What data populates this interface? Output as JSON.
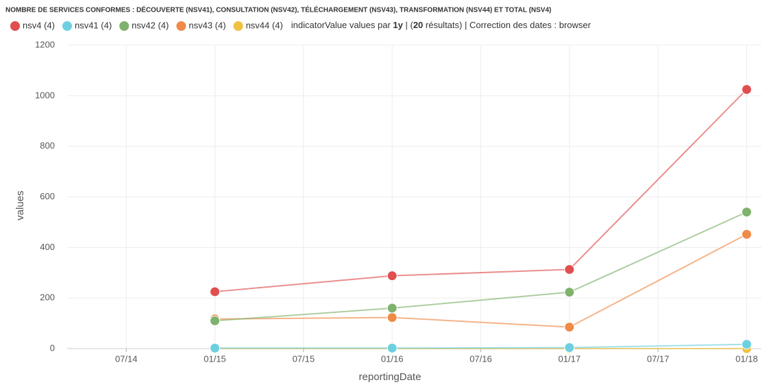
{
  "chart_data": {
    "type": "line",
    "title": "NOMBRE DE SERVICES CONFORMES : DÉCOUVERTE (NSV41), CONSULTATION (NSV42), TÉLÉCHARGEMENT (NSV43), TRANSFORMATION (NSV44) ET TOTAL (NSV4)",
    "subtitle": [
      "indicatorValue values par ",
      "1y",
      " | (",
      "20",
      " résultats) | Correction des dates : browser"
    ],
    "x_label": "reportingDate",
    "y_label": "values",
    "x": [
      "01/15",
      "01/16",
      "01/17",
      "01/18"
    ],
    "xlim": [
      "03/14",
      "02/18"
    ],
    "xticks": [
      "07/14",
      "01/15",
      "07/15",
      "01/16",
      "07/16",
      "01/17",
      "07/17",
      "01/18"
    ],
    "ylim": [
      0,
      1200
    ],
    "yticks": [
      0,
      200,
      400,
      600,
      800,
      1000,
      1200
    ],
    "grid": true,
    "series": [
      {
        "name": "nsv4 (4)",
        "color": "#e04e4e",
        "values": [
          225,
          288,
          313,
          1025
        ]
      },
      {
        "name": "nsv41 (4)",
        "color": "#6dd0e0",
        "values": [
          2,
          2,
          4,
          17
        ]
      },
      {
        "name": "nsv42 (4)",
        "color": "#7fb26d",
        "values": [
          110,
          160,
          223,
          540
        ]
      },
      {
        "name": "nsv43 (4)",
        "color": "#ef8a47",
        "values": [
          117,
          123,
          85,
          452
        ]
      },
      {
        "name": "nsv44 (4)",
        "color": "#f0c040",
        "values": [
          0,
          0,
          0,
          0
        ]
      }
    ]
  }
}
